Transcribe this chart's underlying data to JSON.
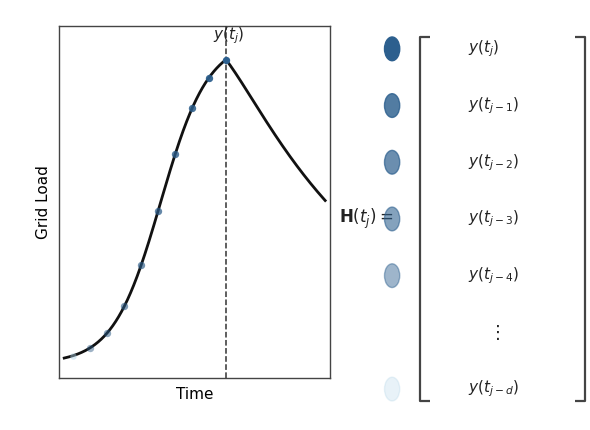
{
  "xlabel": "Time",
  "ylabel": "Grid Load",
  "curve_color": "#111111",
  "dashed_line_color": "#333333",
  "bracket_color": "#444444",
  "label_color": "#222222",
  "background_color": "#ffffff",
  "fig_width": 5.9,
  "fig_height": 4.3,
  "dpi": 100,
  "dot_base_color": [
    44,
    95,
    142
  ],
  "dot_light_color": [
    173,
    210,
    230
  ],
  "curve_t_peak": 0.62,
  "num_plot_dots": 11,
  "dot_step": 0.065,
  "row_labels": [
    "y(t_j)",
    "y(t_{j-1})",
    "y(t_{j-2})",
    "y(t_{j-3})",
    "y(t_{j-4})",
    "\\vdots",
    "y(t_{j-d})"
  ],
  "matrix_dot_alphas": [
    1.0,
    0.82,
    0.7,
    0.58,
    0.46,
    null,
    0.28
  ],
  "matrix_dot_light": [
    false,
    false,
    false,
    false,
    false,
    null,
    true
  ]
}
